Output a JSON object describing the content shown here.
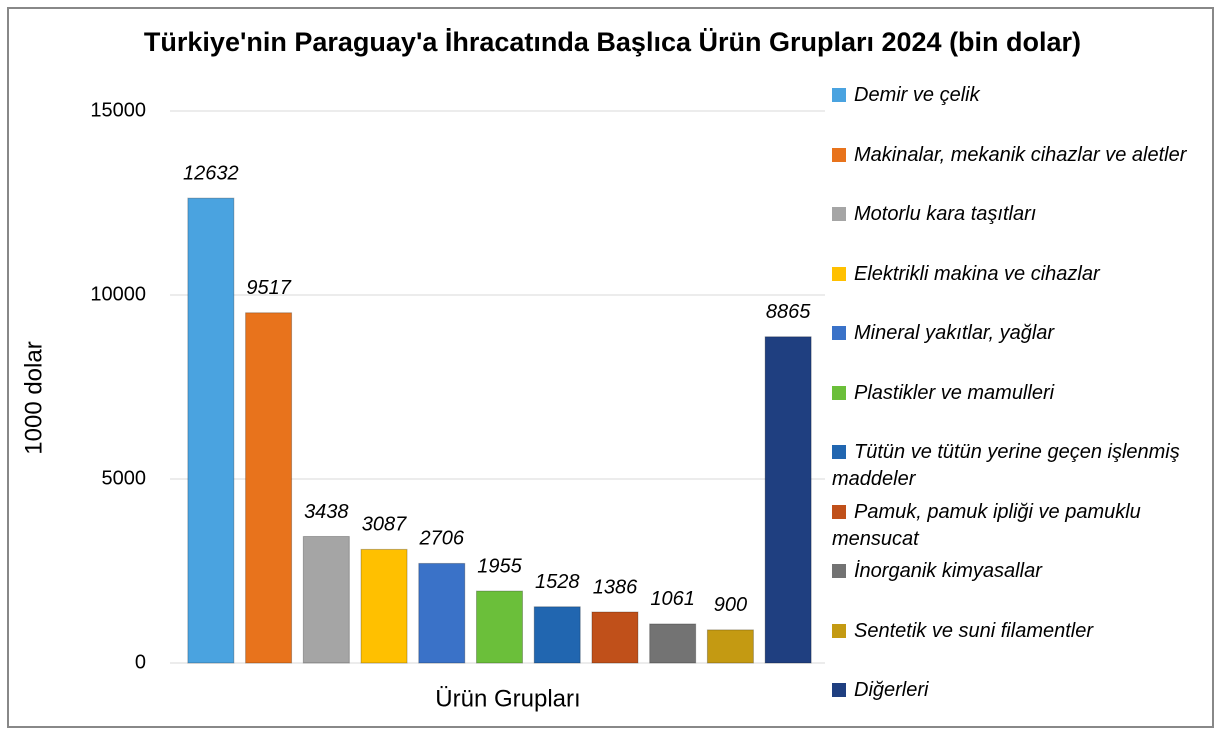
{
  "chart_data": {
    "type": "bar",
    "title": "Türkiye'nin Paraguay'a İhracatında Başlıca Ürün Grupları 2024 (bin dolar)",
    "x_label": "Ürün Grupları",
    "y_label": "1000 dolar",
    "categories": [
      "Demir ve çelik",
      "Makinalar, mekanik cihazlar ve aletler",
      "Motorlu kara taşıtları",
      "Elektrikli makina ve cihazlar",
      "Mineral yakıtlar, yağlar",
      "Plastikler ve mamulleri",
      "Tütün ve tütün yerine geçen işlenmiş maddeler",
      "Pamuk, pamuk ipliği ve pamuklu mensucat",
      "İnorganik kimyasallar",
      "Sentetik ve suni filamentler",
      "Diğerleri"
    ],
    "values": [
      12632,
      9517,
      3438,
      3087,
      2706,
      1955,
      1528,
      1386,
      1061,
      900,
      8865
    ],
    "colors": [
      "#4aa3e0",
      "#e8731c",
      "#a5a5a5",
      "#ffc000",
      "#3a72c8",
      "#6bbf3a",
      "#2166b0",
      "#c0501a",
      "#737373",
      "#c49a12",
      "#1f3f80"
    ],
    "ylim": [
      0,
      15000
    ],
    "yticks": [
      0,
      5000,
      10000,
      15000
    ],
    "grid": true,
    "legend": "right"
  }
}
